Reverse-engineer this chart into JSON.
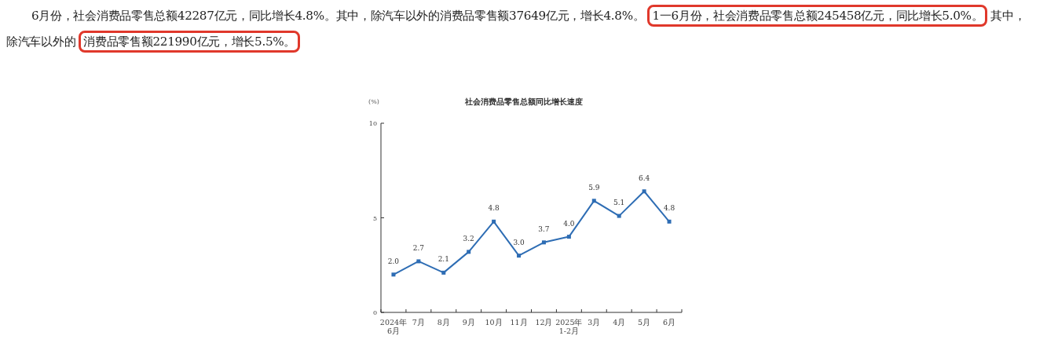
{
  "chart_data": {
    "type": "line",
    "title": "社会消费品零售总额同比增长速度",
    "ylabel": "(%)",
    "categories": [
      "2024年\n6月",
      "7月",
      "8月",
      "9月",
      "10月",
      "11月",
      "12月",
      "2025年\n1-2月",
      "3月",
      "4月",
      "5月",
      "6月"
    ],
    "series": [
      {
        "color": "#2e6db4",
        "values": [
          2.0,
          2.7,
          2.1,
          3.2,
          4.8,
          3.0,
          3.7,
          4.0,
          5.9,
          5.1,
          6.4,
          4.8
        ],
        "value_labels": [
          "2.0",
          "2.7",
          "2.1",
          "3.2",
          "4.8",
          "3.0",
          "3.7",
          "4.0",
          "5.9",
          "5.1",
          "6.4",
          "4.8"
        ]
      }
    ],
    "ylim": [
      0,
      10
    ],
    "yticks": [
      0,
      5,
      10
    ],
    "marker": "square",
    "line_style": "solid",
    "annotations": [
      "6月份，社会消费品零售总额42287亿元，同比增长4.8%。其中，除汽车以外的消费品零售额37649亿元，增长4.8%。",
      "1一6月份，社会消费品零售总额245458亿元，同比增长5.0%。",
      "其中，",
      "除汽车以外的",
      "消费品零售额221990亿元，增长5.5%。"
    ]
  }
}
